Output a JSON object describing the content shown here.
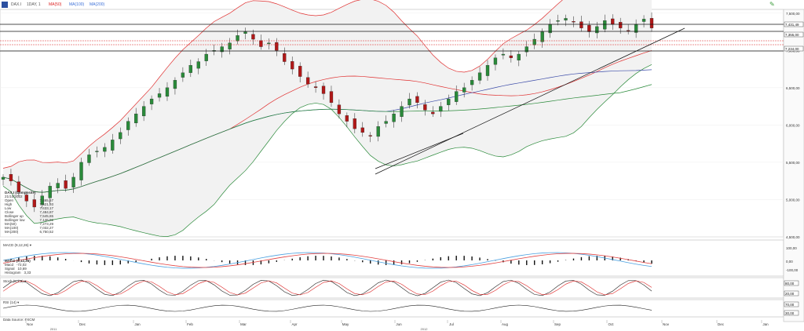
{
  "toolbar": {
    "symbol": "DAX.I",
    "period": "1DAY, 1",
    "ind1": "MA(50)",
    "ind2": "MA(100)",
    "ind3": "MA(200)"
  },
  "legend": {
    "title": "DAX.I (Composite)",
    "date": "21/10/2022",
    "rows": [
      {
        "label": "Open",
        "value": "7,465,57"
      },
      {
        "label": "High",
        "value": "7,521,93"
      },
      {
        "label": "Low",
        "value": "7,433,17"
      },
      {
        "label": "Close",
        "value": "7,484,87"
      },
      {
        "label": "Bollinger up",
        "value": "7,545,65"
      },
      {
        "label": "Bollinger low",
        "value": "7,146,02"
      },
      {
        "label": "MA(50)",
        "value": "7,273,29"
      },
      {
        "label": "MA(100)",
        "value": "7,032,27"
      },
      {
        "label": "MA(200)",
        "value": "6,750,52"
      }
    ]
  },
  "macd_legend": {
    "title": "MACD (9,12,26)",
    "rows": [
      {
        "label": "Macd",
        "value": "-72,02"
      },
      {
        "label": "Signal",
        "value": "10,69"
      },
      {
        "label": "Histogram",
        "value": "3,33"
      }
    ]
  },
  "panes": {
    "macd_label": "MACD (9,12,26) ▾",
    "stoch_label": "Stoch (5,3,3) ▾",
    "rsi_label": "RSI (14) ▾",
    "source": "Data Source: FXCM"
  },
  "colors": {
    "up": "#2a8a3a",
    "down": "#b01818",
    "bb": "#e03030",
    "ma50": "#e03030",
    "ma100": "#3b4ba8",
    "ma200": "#2a8a3a",
    "macd": "#4aa0e0",
    "signal": "#e04040"
  },
  "chart_data": {
    "type": "candlestick",
    "x_labels": [
      "Nov",
      "Dec",
      "Jan",
      "Feb",
      "Mar",
      "Apr",
      "May",
      "Jun",
      "Jul",
      "Aug",
      "Sep",
      "Oct",
      "Nov",
      "Dec",
      "Jan"
    ],
    "year_labels": [
      "2011",
      "2012"
    ],
    "y_ticks": [
      "7,500,00",
      "7,000,00",
      "6,500,00",
      "6,000,00",
      "5,500,00",
      "5,000,00",
      "4,500,00"
    ],
    "y_range": [
      4500,
      7550
    ],
    "price_tags": [
      "7,431,49",
      "7,355,00",
      "7,234,00"
    ],
    "macd_ticks": [
      "100,00",
      "0,00",
      "-100,00"
    ],
    "stoch_ticks": [
      "80,00",
      "20,00"
    ],
    "rsi_ticks": [
      "70,00",
      "30,00"
    ],
    "closes": [
      5300,
      5250,
      5100,
      4980,
      4900,
      5050,
      5180,
      5220,
      5150,
      5300,
      5500,
      5600,
      5650,
      5700,
      5800,
      5900,
      6050,
      6150,
      6250,
      6350,
      6420,
      6500,
      6600,
      6700,
      6800,
      6850,
      6950,
      7000,
      7050,
      7100,
      7200,
      7250,
      7150,
      7050,
      7100,
      7000,
      6850,
      6750,
      6650,
      6550,
      6500,
      6420,
      6300,
      6150,
      6050,
      5950,
      5900,
      5850,
      5980,
      6050,
      6150,
      6250,
      6350,
      6300,
      6200,
      6150,
      6250,
      6350,
      6450,
      6500,
      6600,
      6700,
      6800,
      6900,
      6950,
      6900,
      6950,
      7050,
      7150,
      7250,
      7350,
      7400,
      7430,
      7380,
      7300,
      7250,
      7320,
      7400,
      7350,
      7300,
      7260,
      7350,
      7420,
      7300
    ]
  }
}
